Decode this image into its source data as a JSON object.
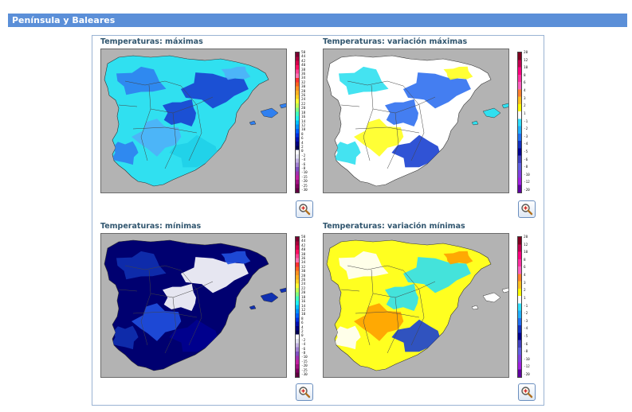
{
  "section": {
    "title": "Península y Baleares"
  },
  "maps": [
    {
      "title": "Temperaturas: máximas",
      "palette": "max",
      "legend": [
        "50",
        "44",
        "42",
        "40",
        "38",
        "36",
        "34",
        "32",
        "30",
        "28",
        "26",
        "24",
        "22",
        "20",
        "18",
        "16",
        "14",
        "12",
        "10",
        "8",
        "6",
        "4",
        "2",
        "0",
        "-2",
        "-4",
        "-6",
        "-8",
        "-10",
        "-15",
        "-20",
        "-25",
        "-30"
      ],
      "legend_colors": [
        "#7a0030",
        "#a8003a",
        "#d4004a",
        "#ff1060",
        "#ff4090",
        "#ff70b0",
        "#ff3030",
        "#ff6020",
        "#ff9020",
        "#ffb020",
        "#ffd020",
        "#ffff30",
        "#c0ff50",
        "#80ff80",
        "#40ffc0",
        "#20f0f0",
        "#00c0ff",
        "#0090ff",
        "#0060ff",
        "#0030e0",
        "#0010b0",
        "#000080",
        "#000050",
        "#ffffff",
        "#e0e0f0",
        "#c0b0e0",
        "#a080d0",
        "#8050c0",
        "#a030b0",
        "#c020a0",
        "#a01080",
        "#800060",
        "#600040"
      ],
      "fill_colors": [
        "#30e0f0",
        "#3080f0",
        "#1a40d0",
        "#50b0f8",
        "#20d0e8"
      ]
    },
    {
      "title": "Temperaturas: variación máximas",
      "palette": "var",
      "legend": [
        "20",
        "12",
        "10",
        "8",
        "6",
        "4",
        "3",
        "2",
        "1",
        "-1",
        "-2",
        "-3",
        "-4",
        "-5",
        "-6",
        "-8",
        "-10",
        "-12",
        "-20"
      ],
      "legend_colors": [
        "#800020",
        "#c00050",
        "#ff0080",
        "#ff30a0",
        "#ff60c0",
        "#ff8030",
        "#ffc020",
        "#ffff00",
        "#ffffff",
        "#30e0ff",
        "#20b0ff",
        "#2070f0",
        "#1030c0",
        "#000090",
        "#4040c0",
        "#6060e0",
        "#8040e0",
        "#a020e0",
        "#6000a0"
      ],
      "fill_colors": [
        "#ffffff",
        "#30e0f0",
        "#3070f0",
        "#ffff20",
        "#1a40d0"
      ]
    },
    {
      "title": "Temperaturas: mínimas",
      "palette": "min",
      "legend": [
        "50",
        "44",
        "42",
        "40",
        "38",
        "36",
        "34",
        "32",
        "30",
        "28",
        "26",
        "24",
        "22",
        "20",
        "18",
        "16",
        "14",
        "12",
        "10",
        "8",
        "6",
        "4",
        "2",
        "0",
        "-2",
        "-4",
        "-6",
        "-8",
        "-10",
        "-15",
        "-20",
        "-25",
        "-30"
      ],
      "legend_colors": [
        "#7a0030",
        "#a8003a",
        "#d4004a",
        "#ff1060",
        "#ff4090",
        "#ff70b0",
        "#ff3030",
        "#ff6020",
        "#ff9020",
        "#ffb020",
        "#ffd020",
        "#ffff30",
        "#c0ff50",
        "#80ff80",
        "#40ffc0",
        "#20f0f0",
        "#00c0ff",
        "#0090ff",
        "#0060ff",
        "#0030e0",
        "#0010b0",
        "#000080",
        "#000050",
        "#ffffff",
        "#e0e0f0",
        "#c0b0e0",
        "#a080d0",
        "#8050c0",
        "#a030b0",
        "#c020a0",
        "#a01080",
        "#800060",
        "#600040"
      ],
      "fill_colors": [
        "#000070",
        "#1030b0",
        "#ffffff",
        "#2050e0",
        "#000090"
      ]
    },
    {
      "title": "Temperaturas: variación mínimas",
      "palette": "var",
      "legend": [
        "20",
        "12",
        "10",
        "8",
        "6",
        "4",
        "3",
        "2",
        "1",
        "-1",
        "-2",
        "-3",
        "-4",
        "-5",
        "-6",
        "-8",
        "-10",
        "-12",
        "-20"
      ],
      "legend_colors": [
        "#800020",
        "#c00050",
        "#ff0080",
        "#ff30a0",
        "#ff60c0",
        "#ff8030",
        "#ffc020",
        "#ffff00",
        "#ffffff",
        "#30e0ff",
        "#20b0ff",
        "#2070f0",
        "#1030c0",
        "#000090",
        "#4040c0",
        "#6060e0",
        "#8040e0",
        "#a020e0",
        "#6000a0"
      ],
      "fill_colors": [
        "#ffff20",
        "#ffffff",
        "#30e0f0",
        "#ffa000",
        "#1a40d0"
      ]
    }
  ]
}
